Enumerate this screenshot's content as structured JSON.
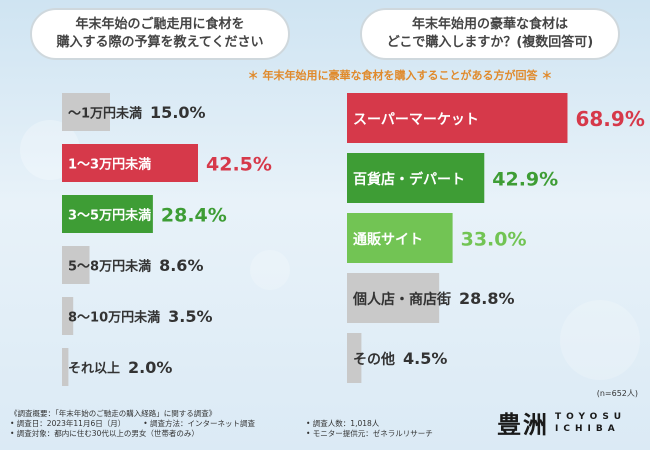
{
  "left_question": "年末年始のご馳走用に食材を\n購入する際の予算を教えてください",
  "right_question": "年末年始用の豪華な食材は\nどこで購入しますか？(複数回答可)",
  "right_note": "＊ 年末年始用に豪華な食材を購入することがある方が回答 ＊",
  "sample_size": "(n=652人)",
  "colors": {
    "red": "#d6394a",
    "green": "#3e9d35",
    "light_green": "#72c454",
    "gray": "#c9c9c9"
  },
  "chart_data": [
    {
      "type": "bar",
      "orientation": "horizontal",
      "categories": [
        "～1万円未満",
        "1～3万円未満",
        "3～5万円未満",
        "5～8万円未満",
        "8～10万円未満",
        "それ以上"
      ],
      "values": [
        15.0,
        42.5,
        28.4,
        8.6,
        3.5,
        2.0
      ],
      "value_labels": [
        "15.0%",
        "42.5%",
        "28.4%",
        "8.6%",
        "3.5%",
        "2.0%"
      ],
      "bar_colors": [
        "gray",
        "red",
        "green",
        "gray",
        "gray",
        "gray"
      ],
      "unit": "%"
    },
    {
      "type": "bar",
      "orientation": "horizontal",
      "categories": [
        "スーパーマーケット",
        "百貨店・デパート",
        "通販サイト",
        "個人店・商店街",
        "その他"
      ],
      "values": [
        68.9,
        42.9,
        33.0,
        28.8,
        4.5
      ],
      "value_labels": [
        "68.9%",
        "42.9%",
        "33.0%",
        "28.8%",
        "4.5%"
      ],
      "bar_colors": [
        "red",
        "green",
        "light_green",
        "gray",
        "gray"
      ],
      "unit": "%"
    }
  ],
  "footer": {
    "overview": "《調査概要：「年末年始のご馳走の購入経路」に関する調査》",
    "period": "• 調査日：2023年11月6日（月）",
    "method": "• 調査方法：インターネット調査",
    "count": "• 調査人数：1,018人",
    "target": "• 調査対象：都内に住む30代以上の男女（世帯者のみ）",
    "provider": "• モニター提供元：ゼネラルリサーチ"
  },
  "logo": {
    "kanji": "豊洲",
    "latin_top": "TOYOSU",
    "latin_bottom": "ICHIBA"
  }
}
